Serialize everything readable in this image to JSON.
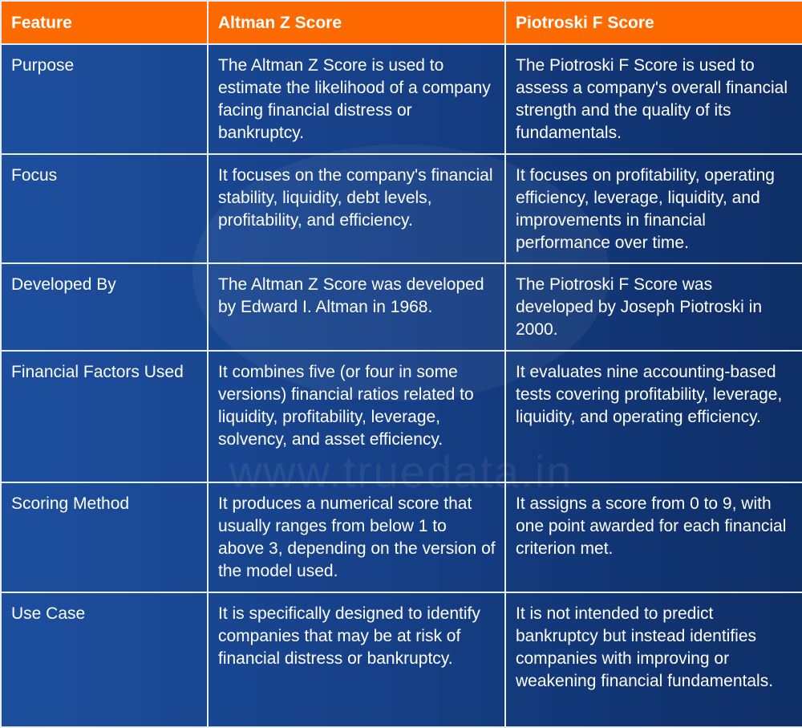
{
  "table": {
    "header": [
      "Feature",
      "Altman Z Score",
      "Piotroski F Score"
    ],
    "rows": [
      [
        "Purpose",
        "The Altman Z Score is used to estimate the likelihood of a company facing financial distress or bankruptcy.",
        "The Piotroski F Score is used to assess a company's overall financial strength and the quality of its fundamentals."
      ],
      [
        "Focus",
        "It focuses on the company's financial stability, liquidity, debt levels, profitability, and efficiency.",
        "It focuses on profitability, operating efficiency, leverage, liquidity, and improvements in financial performance over time."
      ],
      [
        "Developed By",
        "The Altman Z Score was developed by Edward I. Altman in 1968.",
        "The Piotroski F Score was developed by Joseph Piotroski in 2000."
      ],
      [
        "Financial Factors Used",
        "It combines five (or four in some versions) financial ratios related to liquidity, profitability, leverage, solvency, and asset efficiency.",
        "It evaluates nine accounting-based tests covering profitability, leverage, liquidity, and operating efficiency."
      ],
      [
        "Scoring Method",
        "It produces a numerical score that usually ranges from below 1 to above 3, depending on the version of the model used.",
        "It assigns a score from 0 to 9, with one point awarded for each financial criterion met."
      ],
      [
        "Use Case",
        "It is specifically designed to identify companies that may be at risk of financial distress or bankruptcy.",
        "It is not intended to predict bankruptcy but instead identifies companies with improving or weakening financial fundamentals."
      ]
    ]
  },
  "watermark": "www.truedata.in"
}
